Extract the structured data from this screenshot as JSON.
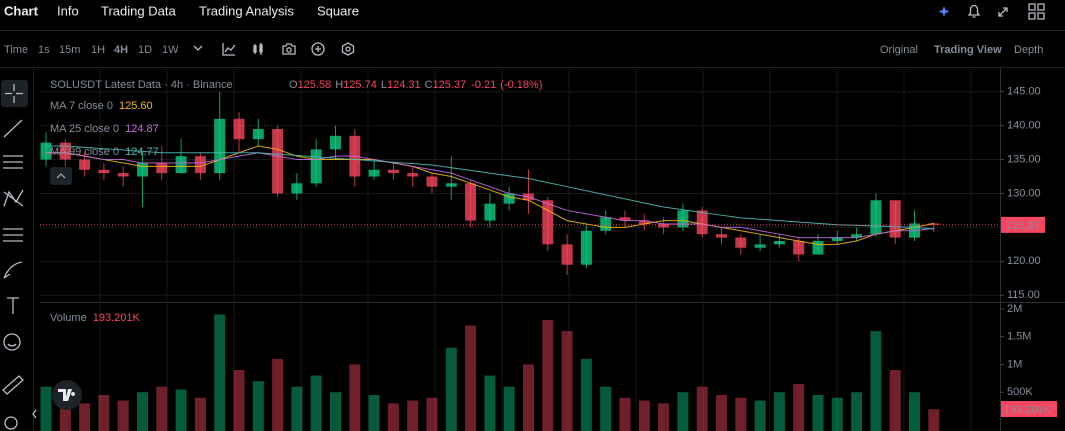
{
  "nav": {
    "tabs": [
      "Chart",
      "Info",
      "Trading Data",
      "Trading Analysis",
      "Square"
    ]
  },
  "toolbar": {
    "intervals": [
      "Time",
      "1s",
      "15m",
      "1H",
      "4H",
      "1D",
      "1W"
    ],
    "views": [
      "Original",
      "Trading View",
      "Depth"
    ]
  },
  "chart_data": {
    "type": "candlestick",
    "title": "SOLUSDT Latest Data · 4h · Binance",
    "ohlc": [
      {
        "label": "O",
        "value": 125.58
      },
      {
        "label": "H",
        "value": 125.74
      },
      {
        "label": "L",
        "value": 124.31
      },
      {
        "label": "C",
        "value": 125.37
      }
    ],
    "change": -0.21,
    "change_pct": {
      "value": -0.18,
      "label": "(-0.18%)"
    },
    "up_color": "#0ecb81",
    "down_color": "#f6465d",
    "ylim": [
      114.3,
      148.2
    ],
    "yticks": [
      {
        "value": 115,
        "label": "115.00"
      },
      {
        "value": 120,
        "label": "120.00"
      },
      {
        "value": 125,
        "label": "125.00"
      },
      {
        "value": 130,
        "label": "130.00"
      },
      {
        "value": 135,
        "label": "135.00"
      },
      {
        "value": 140,
        "label": "140.00"
      },
      {
        "value": 145,
        "label": "145.00"
      }
    ],
    "candles": {
      "open": [
        135,
        137.5,
        135,
        133.5,
        133,
        132.5,
        134.5,
        133,
        135.5,
        133,
        141,
        138,
        139.5,
        130,
        131.5,
        136.5,
        138.5,
        132.5,
        133.5,
        133,
        132.5,
        131,
        131.5,
        126,
        128.5,
        130,
        129,
        122.5,
        119.5,
        124.5,
        126.5,
        126,
        125.5,
        125,
        127.5,
        124,
        123.5,
        122,
        122.5,
        123,
        121,
        123,
        123.5,
        124,
        129,
        123.5,
        125.58
      ],
      "high": [
        139,
        138,
        136,
        134.5,
        134,
        136,
        137,
        138,
        136,
        145,
        142,
        141,
        140,
        133,
        138,
        140,
        139.5,
        135,
        134.5,
        134,
        133,
        135.5,
        132,
        130,
        131,
        133.5,
        129.5,
        124,
        125.5,
        127.5,
        127.5,
        127,
        126.5,
        128.5,
        128,
        125,
        124,
        124,
        124,
        123.5,
        124,
        124.5,
        125,
        130,
        129,
        127.5,
        125.74
      ],
      "low": [
        134,
        134,
        132.5,
        132,
        131,
        128,
        132,
        133,
        132,
        132,
        136,
        137,
        129.5,
        129,
        131,
        135,
        131,
        132,
        132,
        131,
        130,
        129,
        125,
        125,
        127.5,
        127,
        121.5,
        118,
        119,
        124,
        125,
        124.5,
        124,
        124.5,
        123.5,
        122.5,
        121,
        121.5,
        122,
        120,
        121,
        122.5,
        123,
        123.5,
        122.5,
        123,
        124.31
      ],
      "close": [
        137.5,
        135,
        133.5,
        133,
        132.5,
        134.5,
        133,
        135.5,
        133,
        141,
        138,
        139.5,
        130,
        131.5,
        136.5,
        138.5,
        132.5,
        133.5,
        133,
        132.5,
        131,
        131.5,
        126,
        128.5,
        130,
        129,
        122.5,
        119.5,
        124.5,
        126.5,
        126,
        125.5,
        125,
        127.5,
        124,
        123.5,
        122,
        122.5,
        123,
        121,
        123,
        123.5,
        124,
        129,
        123.5,
        125.58,
        125.37
      ]
    },
    "series": [
      {
        "name": "MA 7 close 0",
        "color": "#f0b90b",
        "last": {
          "value": 125.6,
          "label": "125.60"
        },
        "values": [
          136,
          136,
          135.5,
          135,
          134.5,
          134,
          134,
          134,
          134,
          135,
          136,
          137,
          136.5,
          135.5,
          135,
          135,
          135,
          135,
          134.5,
          134,
          133,
          132.5,
          131.5,
          130.5,
          129.5,
          129,
          127.5,
          126,
          125.5,
          125,
          125,
          125.5,
          126,
          126,
          125.5,
          125,
          124.5,
          124,
          123.5,
          123,
          122.5,
          122.5,
          123,
          124,
          124.5,
          125,
          125.6
        ]
      },
      {
        "name": "MA 25 close 0",
        "color": "#c26bdb",
        "last": {
          "value": 124.87,
          "label": "124.87"
        },
        "values": [
          136,
          136,
          135.5,
          135,
          135,
          134.5,
          134.5,
          134.5,
          134.5,
          135,
          135.5,
          136,
          135.5,
          135,
          135,
          135.5,
          135.5,
          135,
          134.5,
          134,
          133.5,
          133,
          132,
          131,
          130,
          129.5,
          128.5,
          127.5,
          127,
          126.5,
          126,
          126,
          125.5,
          125.5,
          125.5,
          125,
          125,
          124.5,
          124,
          123.5,
          123.5,
          123.5,
          123.5,
          124,
          124.5,
          124.5,
          124.87
        ]
      },
      {
        "name": "MA 99 close 0",
        "color": "#4cb8b0",
        "last": {
          "value": 124.77,
          "label": "124.77"
        },
        "values": [
          137,
          137,
          136.8,
          136.6,
          136.4,
          136.2,
          136,
          136,
          136,
          136,
          136,
          136,
          135.8,
          135.6,
          135.4,
          135.2,
          135,
          134.8,
          134.6,
          134.4,
          134.2,
          133.8,
          133.4,
          133,
          132.6,
          132.2,
          131.6,
          131,
          130.4,
          129.8,
          129.2,
          128.6,
          128,
          127.6,
          127.2,
          126.8,
          126.4,
          126.2,
          126,
          125.8,
          125.6,
          125.4,
          125.3,
          125.2,
          125.1,
          125,
          124.77
        ]
      }
    ],
    "volume": {
      "name": "Volume",
      "last": {
        "value": 193201,
        "label": "193.201K"
      },
      "ylim": [
        0,
        2070000
      ],
      "yticks": [
        {
          "value": 500000,
          "label": "500K"
        },
        {
          "value": 1000000,
          "label": "1M"
        },
        {
          "value": 1500000,
          "label": "1.5M"
        },
        {
          "value": 2000000,
          "label": "2M"
        }
      ],
      "values": [
        600000,
        400000,
        300000,
        450000,
        350000,
        500000,
        600000,
        550000,
        400000,
        1900000,
        900000,
        700000,
        1100000,
        600000,
        800000,
        500000,
        1000000,
        450000,
        300000,
        350000,
        400000,
        1300000,
        1700000,
        800000,
        600000,
        1000000,
        1800000,
        1600000,
        1100000,
        600000,
        400000,
        350000,
        300000,
        500000,
        600000,
        450000,
        400000,
        350000,
        500000,
        650000,
        450000,
        400000,
        500000,
        1600000,
        900000,
        500000,
        193201
      ]
    }
  }
}
